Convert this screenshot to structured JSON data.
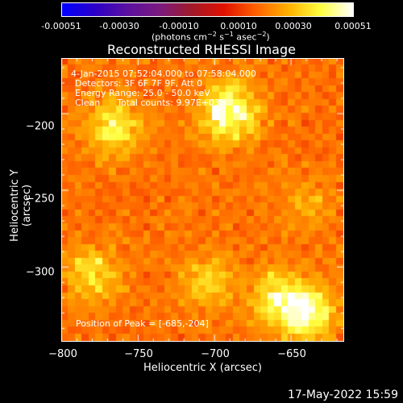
{
  "chart_data": {
    "type": "heatmap",
    "title": "Reconstructed RHESSI Image",
    "xlabel": "Heliocentric X (arcsec)",
    "ylabel": "Heliocentric Y (arcsec)",
    "xlim": [
      -800,
      -615
    ],
    "ylim": [
      -349,
      -164
    ],
    "x_ticks": [
      "−800",
      "−750",
      "−700",
      "−650"
    ],
    "x_tick_values": [
      -800,
      -750,
      -700,
      -650
    ],
    "y_ticks": [
      "−200",
      "−250",
      "−300"
    ],
    "y_tick_values": [
      -200,
      -250,
      -300
    ],
    "colorbar": {
      "ticks": [
        "-0.00051",
        "-0.00030",
        "-0.00010",
        "0.00010",
        "0.00030",
        "0.00051"
      ],
      "tick_values": [
        -0.00051,
        -0.0003,
        -0.0001,
        0.0001,
        0.0003,
        0.00051
      ],
      "range": [
        -0.00051,
        0.00051
      ],
      "unit_text": "(photons cm",
      "unit_exp1": "−2",
      "unit_mid1": " s",
      "unit_exp2": "−1",
      "unit_mid2": " asec",
      "unit_exp3": "−2",
      "unit_end": ")",
      "colors": [
        "#0000ff",
        "#2b00c8",
        "#5a10a0",
        "#7a1a80",
        "#a01a2a",
        "#e01000",
        "#ff6000",
        "#ffb000",
        "#ffff40",
        "#ffffff"
      ]
    },
    "sources": [
      {
        "x": -690,
        "y": -200,
        "intensity": 0.00051
      },
      {
        "x": -765,
        "y": -210,
        "intensity": 0.00033
      },
      {
        "x": -640,
        "y": -330,
        "intensity": 0.00046
      },
      {
        "x": -660,
        "y": -320,
        "intensity": 0.0003
      },
      {
        "x": -778,
        "y": -305,
        "intensity": 0.00028
      },
      {
        "x": -705,
        "y": -310,
        "intensity": 0.00022
      },
      {
        "x": -640,
        "y": -260,
        "intensity": 0.00014
      }
    ],
    "annotations": {
      "time_range": "4-Jan-2015 07:52:04.000 to 07:58:04.000",
      "detectors": "Detectors: 3F 6F 7F 9F, Att 0",
      "energy": "Energy Range: 25.0 - 50.0 keV",
      "clean": "Clean      Total counts: 9.97E+03",
      "peak": "Position of Peak = [-685,-204]"
    },
    "peak": {
      "x": -685,
      "y": -204
    }
  },
  "footer": {
    "date": "17-May-2022 15:59"
  }
}
